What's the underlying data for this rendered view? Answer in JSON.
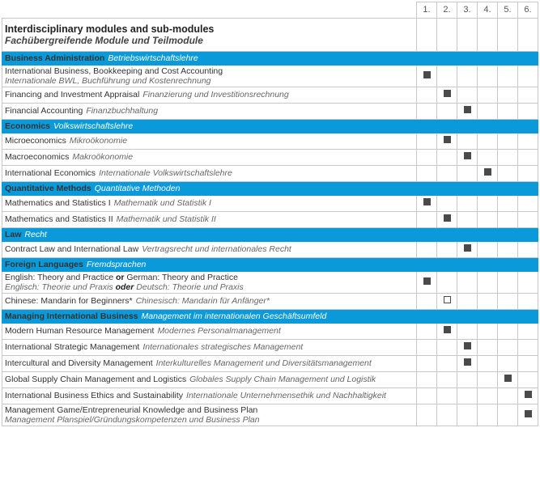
{
  "header": {
    "columns": [
      "1.",
      "2.",
      "3.",
      "4.",
      "5.",
      "6."
    ],
    "title": "Interdisciplinary modules and sub-modules",
    "subtitle": "Fachübergreifende Module und Teilmodule"
  },
  "sections": [
    {
      "title": "Business Administration",
      "title_de": "Betriebswirtschaftslehre",
      "rows": [
        {
          "en": [
            "International Business, Bookkeeping and Cost Accounting"
          ],
          "de": [
            "Internationale BWL, Buchführung und Kostenrechnung"
          ],
          "semester": 1,
          "mark": "filled"
        },
        {
          "en": [
            "Financing and Investment Appraisal"
          ],
          "de": [
            "Finanzierung und Investitionsrechnung"
          ],
          "semester": 2,
          "mark": "filled"
        },
        {
          "en": [
            "Financial Accounting"
          ],
          "de": [
            "Finanzbuchhaltung"
          ],
          "semester": 3,
          "mark": "filled"
        }
      ]
    },
    {
      "title": "Economics",
      "title_de": "Volkswirtschaftslehre",
      "rows": [
        {
          "en": [
            "Microeconomics"
          ],
          "de": [
            "Mikroökonomie"
          ],
          "semester": 2,
          "mark": "filled"
        },
        {
          "en": [
            "Macroeconomics"
          ],
          "de": [
            "Makroökonomie"
          ],
          "semester": 3,
          "mark": "filled"
        },
        {
          "en": [
            "International Economics"
          ],
          "de": [
            "Internationale Volkswirtschaftslehre"
          ],
          "semester": 4,
          "mark": "filled"
        }
      ]
    },
    {
      "title": "Quantitative Methods",
      "title_de": "Quantitative Methoden",
      "rows": [
        {
          "en": [
            "Mathematics and Statistics I"
          ],
          "de": [
            "Mathematik und Statistik I"
          ],
          "semester": 1,
          "mark": "filled"
        },
        {
          "en": [
            "Mathematics and Statistics II"
          ],
          "de": [
            "Mathematik und Statistik II"
          ],
          "semester": 2,
          "mark": "filled"
        }
      ]
    },
    {
      "title": "Law",
      "title_de": "Recht",
      "rows": [
        {
          "en": [
            "Contract Law and International Law"
          ],
          "de": [
            "Vertragsrecht und internationales Recht"
          ],
          "semester": 3,
          "mark": "filled"
        }
      ]
    },
    {
      "title": "Foreign Languages",
      "title_de": "Fremdsprachen",
      "rows": [
        {
          "en": [
            "English: Theory and Practice",
            "or",
            "German: Theory and Practice"
          ],
          "de": [
            "Englisch: Theorie und Praxis",
            "oder",
            "Deutsch: Theorie und Praxis"
          ],
          "semester": 1,
          "mark": "filled"
        },
        {
          "en": [
            "Chinese: Mandarin for Beginners*"
          ],
          "de": [
            "Chinesisch: Mandarin für Anfänger*"
          ],
          "semester": 2,
          "mark": "open"
        }
      ]
    },
    {
      "title": "Managing International Business",
      "title_de": "Management im internationalen Geschäftsumfeld",
      "rows": [
        {
          "en": [
            "Modern Human Resource Management"
          ],
          "de": [
            "Modernes Personalmanagement"
          ],
          "semester": 2,
          "mark": "filled"
        },
        {
          "en": [
            "International Strategic Management"
          ],
          "de": [
            "Internationales strategisches Management"
          ],
          "semester": 3,
          "mark": "filled"
        },
        {
          "en": [
            "Intercultural and Diversity Management"
          ],
          "de": [
            "Interkulturelles Management und Diversitätsmanagement"
          ],
          "semester": 3,
          "mark": "filled"
        },
        {
          "en": [
            "Global Supply Chain Management and Logistics"
          ],
          "de": [
            "Globales Supply Chain Management und Logistik"
          ],
          "semester": 5,
          "mark": "filled"
        },
        {
          "en": [
            "International Business Ethics and Sustainability"
          ],
          "de": [
            "Internationale Unternehmensethik und Nachhaltigkeit"
          ],
          "semester": 6,
          "mark": "filled"
        },
        {
          "en": [
            "Management Game/Entrepreneurial Knowledge and Business Plan"
          ],
          "de": [
            "Management Planspiel/Gründungskompetenzen und Business Plan"
          ],
          "semester": 6,
          "mark": "filled"
        }
      ]
    }
  ]
}
